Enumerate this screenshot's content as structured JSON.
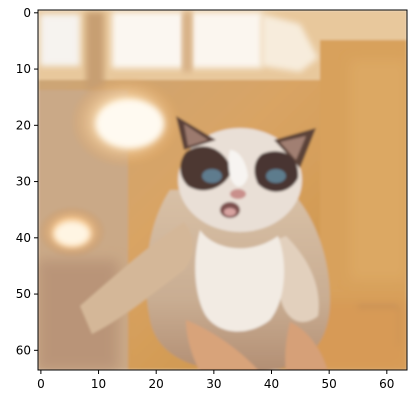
{
  "image": {
    "description_colors": {
      "frame": "#000000",
      "background": "#ffffff"
    }
  },
  "chart_data": {
    "type": "heatmap",
    "title": "",
    "xlabel": "",
    "ylabel": "",
    "xlim": [
      -0.5,
      63.5
    ],
    "ylim": [
      63.5,
      -0.5
    ],
    "x_ticks": [
      0,
      10,
      20,
      30,
      40,
      50,
      60
    ],
    "y_ticks": [
      0,
      10,
      20,
      30,
      40,
      50,
      60
    ],
    "x_tick_labels": [
      "0",
      "10",
      "20",
      "30",
      "40",
      "50",
      "60"
    ],
    "y_tick_labels": [
      "0",
      "10",
      "20",
      "30",
      "40",
      "50",
      "60"
    ],
    "grid": false
  }
}
